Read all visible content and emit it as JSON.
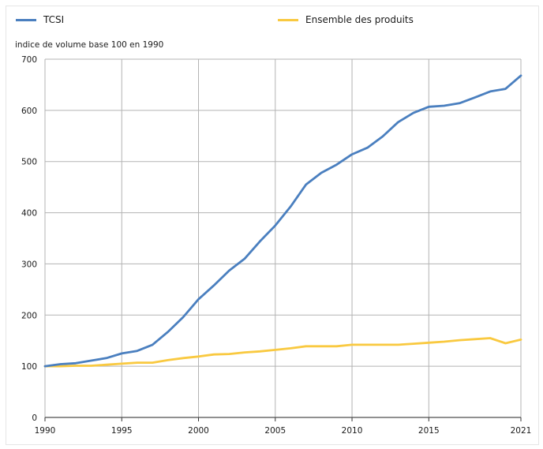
{
  "chart_data": {
    "type": "line",
    "ylabel": "indice de volume base 100 en 1990",
    "xlabel": "",
    "xlim": [
      1990,
      2021
    ],
    "ylim": [
      0,
      700
    ],
    "xticks": [
      1990,
      1995,
      2000,
      2005,
      2010,
      2015,
      2021
    ],
    "yticks": [
      0,
      100,
      200,
      300,
      400,
      500,
      600,
      700
    ],
    "grid": true,
    "legend_position": "top",
    "x": [
      1990,
      1991,
      1992,
      1993,
      1994,
      1995,
      1996,
      1997,
      1998,
      1999,
      2000,
      2001,
      2002,
      2003,
      2004,
      2005,
      2006,
      2007,
      2008,
      2009,
      2010,
      2011,
      2012,
      2013,
      2014,
      2015,
      2016,
      2017,
      2018,
      2019,
      2020,
      2021
    ],
    "series": [
      {
        "name": "TCSI",
        "color": "#4a7fbf",
        "values": [
          100,
          104,
          106,
          111,
          116,
          125,
          130,
          142,
          167,
          196,
          231,
          258,
          287,
          310,
          344,
          375,
          412,
          455,
          478,
          494,
          514,
          527,
          549,
          577,
          595,
          607,
          609,
          614,
          625,
          637,
          642,
          668
        ]
      },
      {
        "name": "Ensemble des produits",
        "color": "#f9c940",
        "values": [
          100,
          100,
          101,
          101,
          103,
          105,
          107,
          107,
          112,
          116,
          119,
          123,
          124,
          127,
          129,
          132,
          135,
          139,
          139,
          139,
          142,
          142,
          142,
          142,
          144,
          146,
          148,
          151,
          153,
          155,
          145,
          152
        ]
      }
    ]
  }
}
